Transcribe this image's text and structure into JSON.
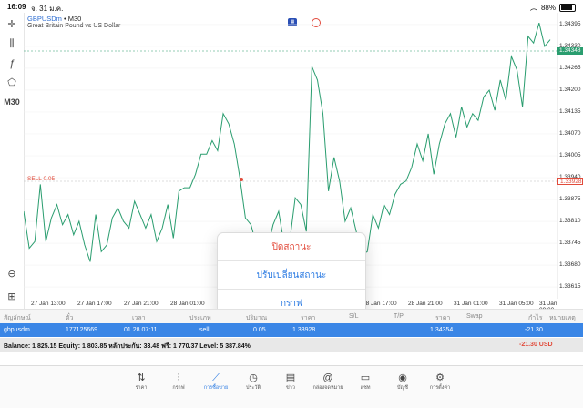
{
  "status_bar": {
    "time": "16:09",
    "date": "จ. 31 ม.ค.",
    "battery": "88%"
  },
  "chart": {
    "symbol": "GBPUSDm",
    "timeframe_suffix": " • M30",
    "description": "Great Britain Pound vs US Dollar",
    "timeframe_button": "M30",
    "sell_label": "SELL 0.05",
    "bid_tag": "1.34348",
    "sell_tag": "1.33928",
    "line_color": "#2a9d6f"
  },
  "chart_data": {
    "type": "line",
    "price_ticks": [
      "1.34395",
      "1.34330",
      "1.34265",
      "1.34200",
      "1.34135",
      "1.34070",
      "1.34005",
      "1.33940",
      "1.33875",
      "1.33810",
      "1.33745",
      "1.33680",
      "1.33615"
    ],
    "time_ticks": [
      "27 Jan 13:00",
      "27 Jan 17:00",
      "27 Jan 21:00",
      "28 Jan 01:00",
      "28 Jan 17:00",
      "28 Jan 21:00",
      "31 Jan 01:00",
      "31 Jan 05:00",
      "31 Jan 09:00"
    ],
    "ylim": [
      1.3358,
      1.3443
    ],
    "values": [
      1.3384,
      1.3373,
      1.3375,
      1.3392,
      1.3375,
      1.3382,
      1.3386,
      1.338,
      1.3383,
      1.3377,
      1.3381,
      1.3374,
      1.3369,
      1.3383,
      1.3372,
      1.3374,
      1.3382,
      1.3385,
      1.3381,
      1.3379,
      1.3387,
      1.3383,
      1.3379,
      1.3383,
      1.3375,
      1.3379,
      1.3386,
      1.3376,
      1.339,
      1.3391,
      1.3391,
      1.3395,
      1.3401,
      1.3401,
      1.3405,
      1.3402,
      1.3413,
      1.341,
      1.3404,
      1.3394,
      1.3382,
      1.338,
      1.3374,
      1.3371,
      1.3373,
      1.338,
      1.3384,
      1.3374,
      1.3375,
      1.3388,
      1.3386,
      1.3378,
      1.3427,
      1.3423,
      1.3413,
      1.339,
      1.34,
      1.3393,
      1.3381,
      1.3385,
      1.3378,
      1.3371,
      1.3372,
      1.3383,
      1.3379,
      1.3386,
      1.3383,
      1.3389,
      1.3392,
      1.3393,
      1.3397,
      1.3404,
      1.3399,
      1.3407,
      1.3395,
      1.3404,
      1.341,
      1.3413,
      1.3406,
      1.3415,
      1.3409,
      1.3413,
      1.3411,
      1.3418,
      1.342,
      1.3414,
      1.3423,
      1.3417,
      1.343,
      1.3426,
      1.3415,
      1.3436,
      1.3434,
      1.344,
      1.3433,
      1.3435
    ]
  },
  "popup": {
    "close": "ปิดสถานะ",
    "modify": "ปรับเปลี่ยนสถานะ",
    "chart": "กราฟ"
  },
  "table": {
    "headers": [
      "สัญลักษณ์",
      "ตั๋ว",
      "เวลา",
      "ประเภท",
      "ปริมาณ",
      "ราคา",
      "S/L",
      "T/P",
      "ราคา",
      "Swap",
      "กำไร",
      "หมายเหตุ"
    ],
    "row": {
      "symbol": "gbpusdm",
      "ticket": "177125669",
      "time": "01.28 07:11",
      "type": "sell",
      "volume": "0.05",
      "open_price": "1.33928",
      "price": "1.34354",
      "profit": "-21.30"
    },
    "balance": "Balance: 1 825.15 Equity: 1 803.85 หลักประกัน: 33.48 ฟรี: 1 770.37 Level: 5 387.84%",
    "total_pl": "-21.30  USD"
  },
  "nav": [
    {
      "label": "ราคา",
      "icon": "quotes-icon",
      "glyph": "⇅"
    },
    {
      "label": "กราฟ",
      "icon": "chart-icon",
      "glyph": "⫶"
    },
    {
      "label": "การซื้อขาย",
      "icon": "trade-icon",
      "glyph": "⟋"
    },
    {
      "label": "ประวัติ",
      "icon": "history-icon",
      "glyph": "◷"
    },
    {
      "label": "ข่าว",
      "icon": "news-icon",
      "glyph": "▤"
    },
    {
      "label": "กล่องจดหมาย",
      "icon": "mail-icon",
      "glyph": "@"
    },
    {
      "label": "แชท",
      "icon": "chat-icon",
      "glyph": "▭"
    },
    {
      "label": "บัญชี",
      "icon": "account-icon",
      "glyph": "◉"
    },
    {
      "label": "การตั้งค่า",
      "icon": "settings-icon",
      "glyph": "⚙"
    }
  ]
}
